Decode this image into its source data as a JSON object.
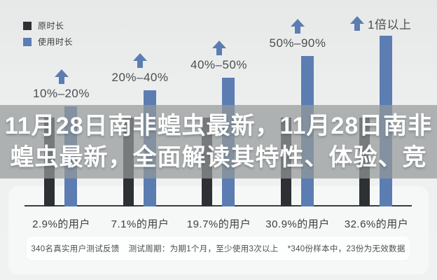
{
  "legend": {
    "items": [
      {
        "label": "原时长",
        "color": "#2e3133"
      },
      {
        "label": "使用时长",
        "color": "#5b7db2"
      }
    ]
  },
  "title_overlay": {
    "line1": "11月28日南非蝗虫最新，11月28日南非",
    "line2": "蝗虫最新，全面解读其特性、体验、竞"
  },
  "chart_data": {
    "type": "bar",
    "title": "",
    "categories": [
      "10%–20%",
      "20%–40%",
      "40%–50%",
      "50%–90%",
      "1倍以上"
    ],
    "series": [
      {
        "name": "原时长",
        "color": "#2e3133",
        "values_rel": [
          0.52,
          0.52,
          0.52,
          0.52,
          0.52
        ]
      },
      {
        "name": "使用时长",
        "color": "#5b7db2",
        "values_rel": [
          0.586,
          0.68,
          0.754,
          0.881,
          1.0
        ]
      }
    ],
    "value_note": "source chart has no numeric y-axis; values are relative bar heights (tallest = 1.0)",
    "arrow_color": "#5b7db2",
    "user_share_labels": [
      "2.9%的用户",
      "7.1%的用户",
      "19.7%的用户",
      "30.9%的用户",
      "32.6%的用户"
    ],
    "category_label_style": [
      "stacked",
      "stacked",
      "stacked",
      "stacked",
      "inline"
    ],
    "legend_position": "top-left",
    "grid": false
  },
  "footer": {
    "items": [
      "340名真实用户测试反馈",
      "测试周期：为期1个月，至少使用3次以上",
      "*340份样本中，23份为无效数据"
    ]
  }
}
